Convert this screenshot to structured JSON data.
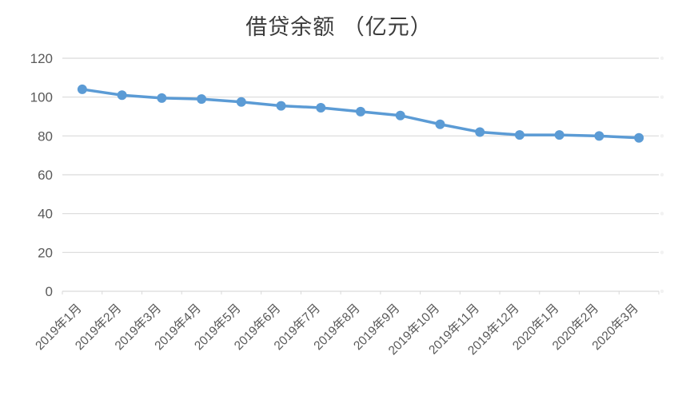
{
  "chart_data": {
    "type": "line",
    "title": "借贷余额 （亿元）",
    "categories": [
      "2019年1月",
      "2019年2月",
      "2019年3月",
      "2019年4月",
      "2019年5月",
      "2019年6月",
      "2019年7月",
      "2019年8月",
      "2019年9月",
      "2019年10月",
      "2019年11月",
      "2019年12月",
      "2020年1月",
      "2020年2月",
      "2020年3月"
    ],
    "series": [
      {
        "name": "借贷余额",
        "values": [
          104,
          101,
          99.5,
          99,
          97.5,
          95.5,
          94.5,
          92.5,
          90.5,
          86,
          82,
          80.5,
          80.5,
          80,
          79
        ]
      }
    ],
    "xlabel": "",
    "ylabel": "",
    "ylim": [
      0,
      120
    ],
    "yticks": [
      0,
      20,
      40,
      60,
      80,
      100,
      120
    ],
    "grid": true,
    "legend_position": "none",
    "colors": {
      "line": "#5B9BD5",
      "marker": "#5B9BD5",
      "grid": "#D9D9D9",
      "axis": "#D9D9D9",
      "labels": "#595959",
      "title": "#3b3b3b"
    }
  }
}
